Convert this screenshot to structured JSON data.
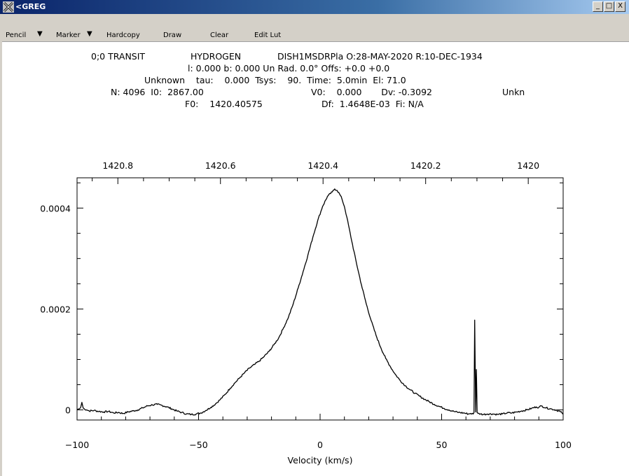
{
  "window": {
    "title": "<GREG",
    "controls": [
      "_",
      "□",
      "X"
    ]
  },
  "menu": {
    "pencil_label": "Pencil",
    "marker_label": "Marker",
    "hardcopy_label": "Hardcopy",
    "draw_label": "Draw",
    "clear_label": "Clear",
    "edit_lut_label": "Edit Lut",
    "dropdown_arrow": "▼"
  },
  "header": {
    "line1_source": "0;0 TRANSIT",
    "line1_line": "HYDROGEN",
    "line1_telescope": "DISH1MSDRPla O:28-MAY-2020 R:10-DEC-1934",
    "line2": "l: 0.000 b: 0.000 Un Rad. 0.0° Offs: +0.0 +0.0",
    "line3": "Unknown    tau:    0.000  Tsys:    90.  Time:  5.0min  El: 71.0",
    "line4_left": "N: 4096  I0:  2867.00",
    "line4_mid": "V0:    0.000       Dv: -0.3092",
    "line4_right": "Unkn",
    "line5_f0": "F0:    1420.40575",
    "line5_df": "Df:  1.4648E-03  Fi: N/A"
  },
  "chart_data": {
    "type": "line",
    "xlabel": "Velocity (km/s)",
    "ylabel": "",
    "xlim": [
      -100,
      100
    ],
    "ylim": [
      -2e-05,
      0.00046
    ],
    "x_ticks": [
      -100,
      -50,
      0,
      50,
      100
    ],
    "x_tick_labels": [
      "−100",
      "−50",
      "0",
      "50",
      "100"
    ],
    "y_ticks": [
      0,
      0.0002,
      0.0004
    ],
    "y_tick_labels": [
      "0",
      "0.0002",
      "0.0004"
    ],
    "top_axis_ticks": [
      1420.8,
      1420.6,
      1420.4,
      1420.2,
      1420
    ],
    "top_axis_labels": [
      "1420.8",
      "1420.6",
      "1420.4",
      "1420.2",
      "1420"
    ],
    "grid": false,
    "series": [
      {
        "x": [
          -100,
          -99,
          -98.5,
          -98,
          -97.5,
          -97,
          -96,
          -95,
          -93,
          -91,
          -89,
          -87,
          -85,
          -83,
          -81,
          -79,
          -77,
          -75,
          -73,
          -71,
          -69,
          -67,
          -65,
          -63,
          -61,
          -59,
          -57,
          -55,
          -53,
          -51,
          -49,
          -47,
          -45,
          -43,
          -41,
          -39,
          -37,
          -35,
          -33,
          -31,
          -29,
          -27,
          -25,
          -23,
          -21,
          -19,
          -17,
          -15,
          -13,
          -11,
          -9,
          -7,
          -5,
          -3,
          -1,
          1,
          3,
          5,
          6,
          7,
          8,
          9,
          10,
          11,
          13,
          15,
          17,
          19,
          21,
          23,
          25,
          27,
          29,
          31,
          33,
          35,
          37,
          39,
          41,
          43,
          45,
          47,
          49,
          51,
          53,
          55,
          57,
          59,
          61,
          62,
          63,
          63.3,
          63.6,
          64,
          64.3,
          64.6,
          65,
          66,
          67,
          69,
          71,
          73,
          75,
          77,
          79,
          81,
          83,
          85,
          87,
          89,
          90,
          91,
          93,
          95,
          97,
          99,
          100
        ],
        "y": [
          1e-06,
          2e-06,
          5e-06,
          1.5e-05,
          4e-06,
          2e-06,
          0.0,
          -2e-06,
          -1e-06,
          -3e-06,
          -4e-06,
          -3e-06,
          -6e-06,
          -5e-06,
          -7e-06,
          -4e-06,
          -2e-06,
          0.0,
          4e-06,
          8e-06,
          1e-05,
          1.1e-05,
          9e-06,
          6e-06,
          2e-06,
          -2e-06,
          -5e-06,
          -8e-06,
          -9e-06,
          -8e-06,
          -6e-06,
          -1e-06,
          5e-06,
          1.2e-05,
          2.1e-05,
          3.1e-05,
          4.3e-05,
          5.4e-05,
          6.4e-05,
          7.4e-05,
          8.3e-05,
          9e-05,
          9.7e-05,
          0.000106,
          0.000116,
          0.000129,
          0.000143,
          0.000163,
          0.000184,
          0.000211,
          0.000242,
          0.000274,
          0.000307,
          0.000342,
          0.000375,
          0.000403,
          0.000423,
          0.000432,
          0.000438,
          0.000435,
          0.000428,
          0.000418,
          0.000403,
          0.000382,
          0.000335,
          0.00029,
          0.000248,
          0.00021,
          0.000177,
          0.000148,
          0.000123,
          0.000102,
          8.5e-05,
          7e-05,
          5.8e-05,
          4.8e-05,
          4e-05,
          3.3e-05,
          2.7e-05,
          2.1e-05,
          1.6e-05,
          1.1e-05,
          7e-06,
          3e-06,
          0.0,
          -3e-06,
          -5e-06,
          -6e-06,
          -8e-06,
          -7e-06,
          -8e-06,
          -5e-06,
          0.000178,
          -4e-06,
          8e-05,
          -5e-06,
          -7e-06,
          -8e-06,
          -9e-06,
          -8e-06,
          -8e-06,
          -9e-06,
          -8e-06,
          -6e-06,
          -6e-06,
          -4e-06,
          -2e-06,
          0.0,
          3e-06,
          6e-06,
          5e-06,
          8e-06,
          4e-06,
          2e-06,
          0.0,
          -4e-06,
          -8e-06
        ]
      }
    ]
  }
}
